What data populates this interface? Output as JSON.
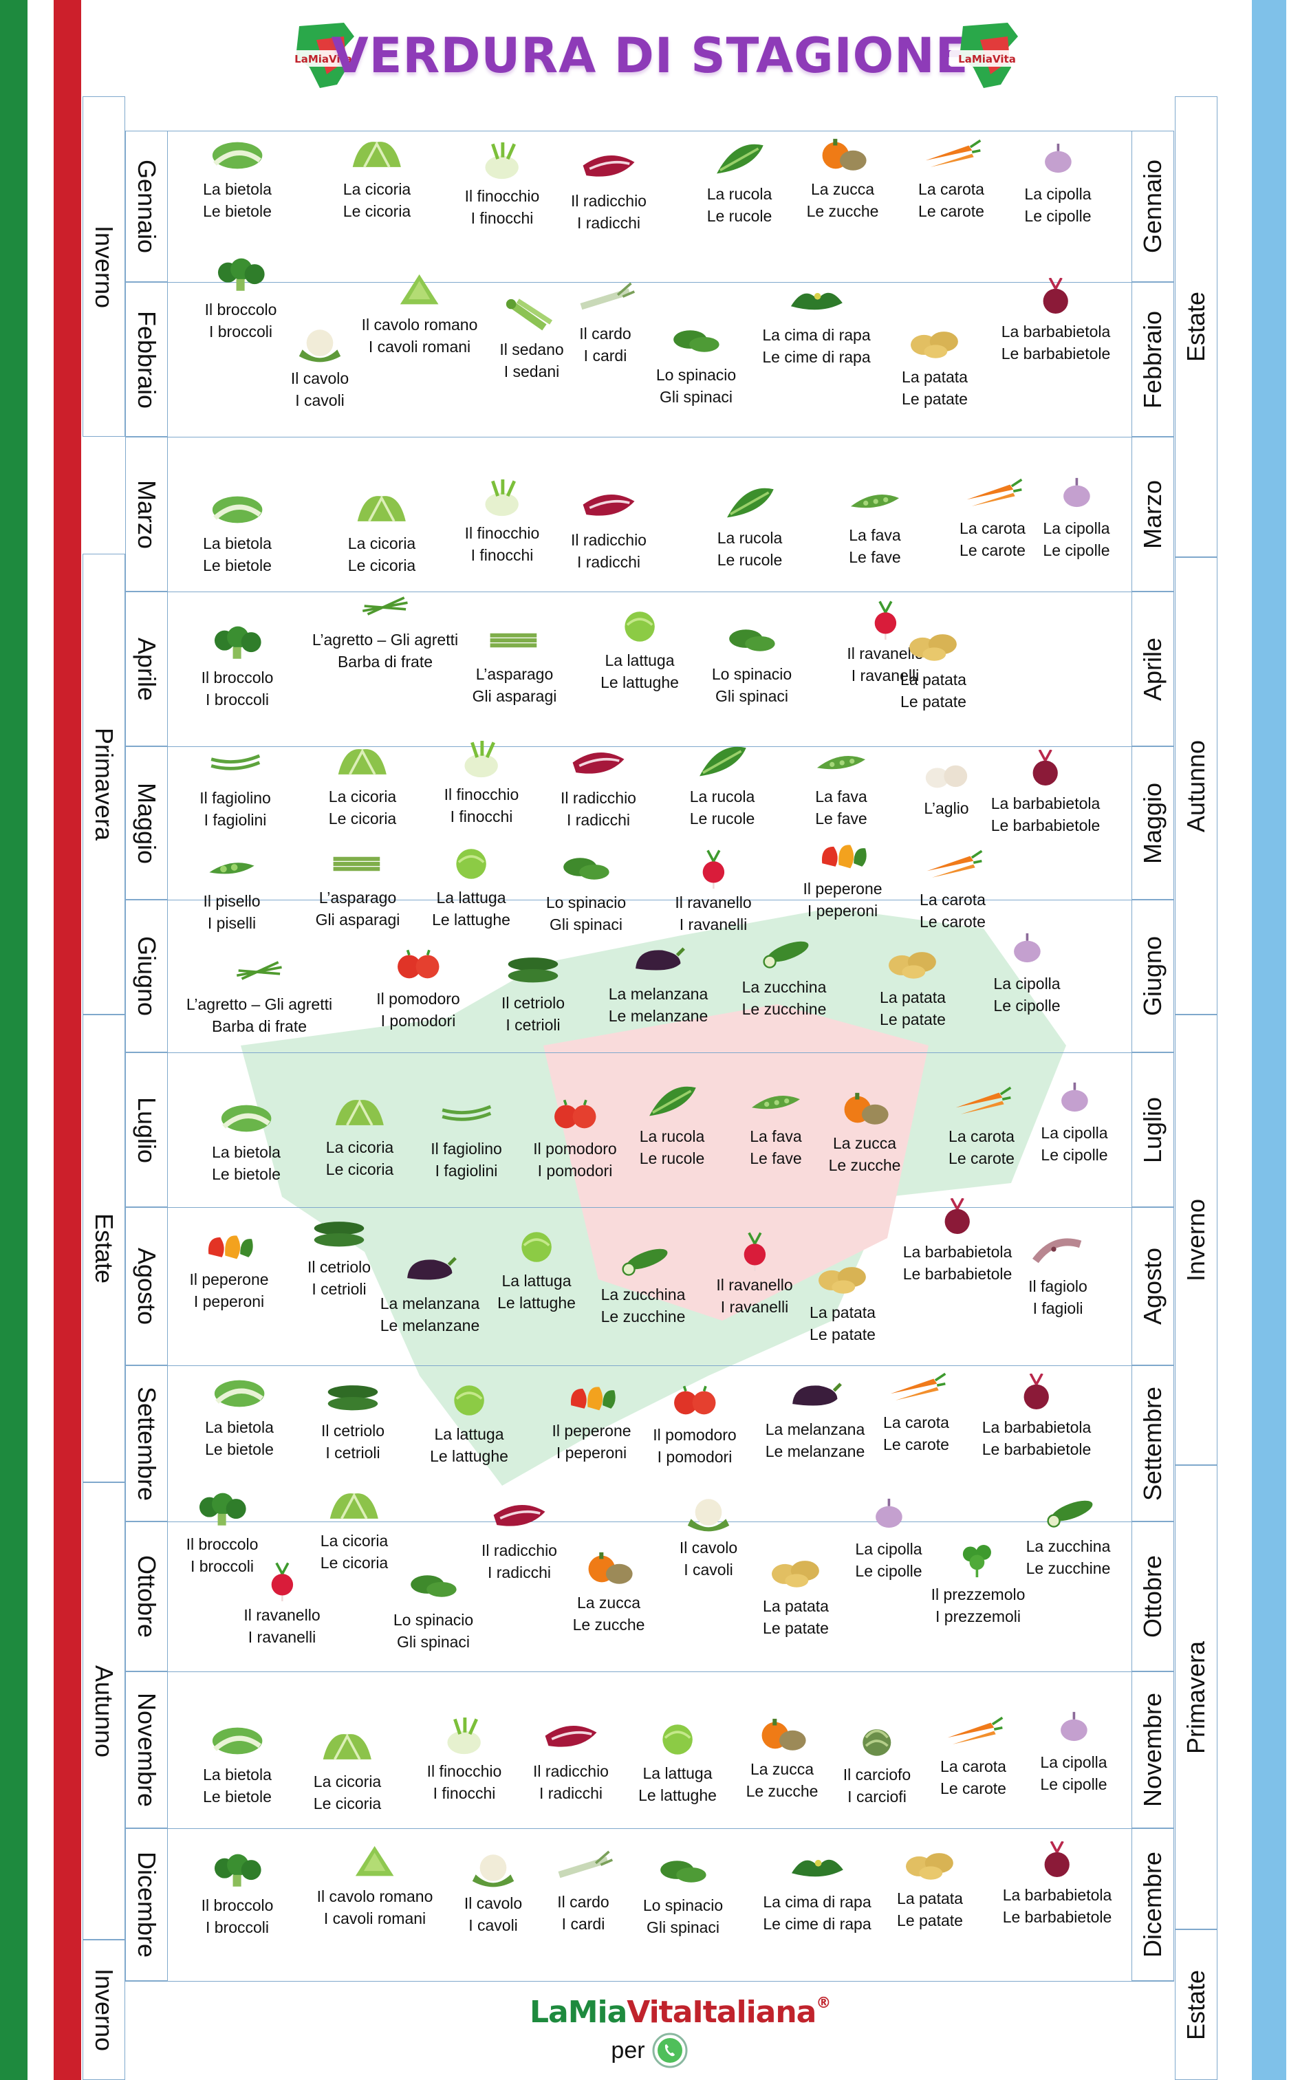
{
  "title": "VERDURA DI STAGIONE",
  "brand": {
    "part1": "La",
    "part2": "Mia",
    "part3": "Vita",
    "part4": "Italiana",
    "mark": "®",
    "per": "per",
    "whatsapp_icon": "whatsapp-icon"
  },
  "colors": {
    "green": "#1e8a3e",
    "red": "#cc1f2b",
    "blue": "#7fc1e9",
    "purple": "#8e3bb8"
  },
  "left_seasons": {
    "s1": "Inverno",
    "s2": "Primavera",
    "s3": "Estate",
    "s4": "Autunno",
    "s5": "Inverno"
  },
  "right_seasons": {
    "s1": "Estate",
    "s2": "Autunno",
    "s3": "Inverno",
    "s4": "Primavera",
    "s5": "Estate"
  },
  "months": [
    "Gennaio",
    "Febbraio",
    "Marzo",
    "Aprile",
    "Maggio",
    "Giugno",
    "Luglio",
    "Agosto",
    "Settembre",
    "Ottobre",
    "Novembre",
    "Dicembre"
  ],
  "rows": [
    {
      "items": [
        [
          "La bietola",
          "Le bietole",
          "chard"
        ],
        [
          "La cicoria",
          "Le cicoria",
          "chicory"
        ],
        [
          "Il finocchio",
          "I finocchi",
          "fennel"
        ],
        [
          "Il radicchio",
          "I radicchi",
          "radicchio"
        ],
        [
          "La rucola",
          "Le rucole",
          "rocket"
        ],
        [
          "La zucca",
          "Le zucche",
          "pumpkin"
        ],
        [
          "La carota",
          "Le carote",
          "carrot"
        ],
        [
          "La cipolla",
          "Le cipolle",
          "onion"
        ]
      ]
    },
    {
      "items": [
        [
          "Il broccolo",
          "I broccoli",
          "broccoli"
        ],
        [
          "Il cavolo",
          "I cavoli",
          "cauliflower"
        ],
        [
          "Il cavolo romano",
          "I cavoli romani",
          "romanesco"
        ],
        [
          "Il sedano",
          "I sedani",
          "celery"
        ],
        [
          "Il cardo",
          "I cardi",
          "cardoon"
        ],
        [
          "Lo spinacio",
          "Gli spinaci",
          "spinach"
        ],
        [
          "La cima di rapa",
          "Le cime di rapa",
          "turnip-greens"
        ],
        [
          "La patata",
          "Le patate",
          "potato"
        ],
        [
          "La barbabietola",
          "Le barbabietole",
          "beetroot"
        ]
      ]
    },
    {
      "items": [
        [
          "La bietola",
          "Le bietole",
          "chard"
        ],
        [
          "La cicoria",
          "Le cicoria",
          "chicory"
        ],
        [
          "Il finocchio",
          "I finocchi",
          "fennel"
        ],
        [
          "Il radicchio",
          "I radicchi",
          "radicchio"
        ],
        [
          "La rucola",
          "Le rucole",
          "rocket"
        ],
        [
          "La fava",
          "Le fave",
          "broad-bean"
        ],
        [
          "La carota",
          "Le carote",
          "carrot"
        ],
        [
          "La cipolla",
          "Le cipolle",
          "onion"
        ]
      ]
    },
    {
      "items": [
        [
          "Il broccolo",
          "I broccoli",
          "broccoli"
        ],
        [
          "L’agretto – Gli agretti",
          "Barba di frate",
          "agretti"
        ],
        [
          "L’asparago",
          "Gli asparagi",
          "asparagus"
        ],
        [
          "La lattuga",
          "Le lattughe",
          "lettuce"
        ],
        [
          "Lo spinacio",
          "Gli spinaci",
          "spinach"
        ],
        [
          "Il ravanello",
          "I ravanelli",
          "radish"
        ],
        [
          "La patata",
          "Le patate",
          "potato"
        ]
      ]
    },
    {
      "items": [
        [
          "Il fagiolino",
          "I fagiolini",
          "green-bean"
        ],
        [
          "La cicoria",
          "Le cicoria",
          "chicory"
        ],
        [
          "Il finocchio",
          "I finocchi",
          "fennel"
        ],
        [
          "Il radicchio",
          "I radicchi",
          "radicchio"
        ],
        [
          "La rucola",
          "Le rucole",
          "rocket"
        ],
        [
          "La fava",
          "Le fave",
          "broad-bean"
        ],
        [
          "L’aglio",
          "",
          "garlic"
        ],
        [
          "La barbabietola",
          "Le barbabietole",
          "beetroot"
        ],
        [
          "Il pisello",
          "I piselli",
          "pea"
        ],
        [
          "L’asparago",
          "Gli asparagi",
          "asparagus"
        ],
        [
          "La lattuga",
          "Le lattughe",
          "lettuce"
        ],
        [
          "Lo spinacio",
          "Gli spinaci",
          "spinach"
        ],
        [
          "Il ravanello",
          "I ravanelli",
          "radish"
        ],
        [
          "Il peperone",
          "I peperoni",
          "pepper"
        ],
        [
          "La carota",
          "Le carote",
          "carrot"
        ]
      ]
    },
    {
      "items": [
        [
          "L’agretto – Gli agretti",
          "Barba di frate",
          "agretti"
        ],
        [
          "Il pomodoro",
          "I pomodori",
          "tomato"
        ],
        [
          "Il cetriolo",
          "I cetrioli",
          "cucumber"
        ],
        [
          "La melanzana",
          "Le melanzane",
          "aubergine"
        ],
        [
          "La zucchina",
          "Le zucchine",
          "zucchini"
        ],
        [
          "La patata",
          "Le patate",
          "potato"
        ],
        [
          "La cipolla",
          "Le cipolle",
          "onion"
        ]
      ]
    },
    {
      "items": [
        [
          "La bietola",
          "Le bietole",
          "chard"
        ],
        [
          "La cicoria",
          "Le cicoria",
          "chicory"
        ],
        [
          "Il fagiolino",
          "I fagiolini",
          "green-bean"
        ],
        [
          "Il pomodoro",
          "I pomodori",
          "tomato"
        ],
        [
          "La rucola",
          "Le rucole",
          "rocket"
        ],
        [
          "La fava",
          "Le fave",
          "broad-bean"
        ],
        [
          "La zucca",
          "Le zucche",
          "pumpkin"
        ],
        [
          "La carota",
          "Le carote",
          "carrot"
        ],
        [
          "La cipolla",
          "Le cipolle",
          "onion"
        ]
      ]
    },
    {
      "items": [
        [
          "Il peperone",
          "I peperoni",
          "pepper"
        ],
        [
          "Il cetriolo",
          "I cetrioli",
          "cucumber"
        ],
        [
          "La melanzana",
          "Le melanzane",
          "aubergine"
        ],
        [
          "La lattuga",
          "Le lattughe",
          "lettuce"
        ],
        [
          "La zucchina",
          "Le zucchine",
          "zucchini"
        ],
        [
          "Il ravanello",
          "I ravanelli",
          "radish"
        ],
        [
          "La patata",
          "Le patate",
          "potato"
        ],
        [
          "La barbabietola",
          "Le barbabietole",
          "beetroot"
        ],
        [
          "Il fagiolo",
          "I fagioli",
          "borlotti-bean"
        ]
      ]
    },
    {
      "items": [
        [
          "La bietola",
          "Le bietole",
          "chard"
        ],
        [
          "Il cetriolo",
          "I cetrioli",
          "cucumber"
        ],
        [
          "La lattuga",
          "Le lattughe",
          "lettuce"
        ],
        [
          "Il peperone",
          "I peperoni",
          "pepper"
        ],
        [
          "Il pomodoro",
          "I pomodori",
          "tomato"
        ],
        [
          "La melanzana",
          "Le melanzane",
          "aubergine"
        ],
        [
          "La carota",
          "Le carote",
          "carrot"
        ],
        [
          "La barbabietola",
          "Le barbabietole",
          "beetroot"
        ]
      ]
    },
    {
      "items": [
        [
          "Il broccolo",
          "I broccoli",
          "broccoli"
        ],
        [
          "La cicoria",
          "Le cicoria",
          "chicory"
        ],
        [
          "Il ravanello",
          "I ravanelli",
          "radish"
        ],
        [
          "Lo spinacio",
          "Gli spinaci",
          "spinach"
        ],
        [
          "Il radicchio",
          "I radicchi",
          "radicchio"
        ],
        [
          "La zucca",
          "Le zucche",
          "pumpkin"
        ],
        [
          "Il cavolo",
          "I cavoli",
          "cauliflower"
        ],
        [
          "La patata",
          "Le patate",
          "potato"
        ],
        [
          "La cipolla",
          "Le cipolle",
          "onion"
        ],
        [
          "Il prezzemolo",
          "I prezzemoli",
          "parsley"
        ],
        [
          "La zucchina",
          "Le zucchine",
          "zucchini"
        ]
      ]
    },
    {
      "items": [
        [
          "La bietola",
          "Le bietole",
          "chard"
        ],
        [
          "La cicoria",
          "Le cicoria",
          "chicory"
        ],
        [
          "Il finocchio",
          "I finocchi",
          "fennel"
        ],
        [
          "Il radicchio",
          "I radicchi",
          "radicchio"
        ],
        [
          "La lattuga",
          "Le lattughe",
          "lettuce"
        ],
        [
          "La zucca",
          "Le zucche",
          "pumpkin"
        ],
        [
          "Il carciofo",
          "I carciofi",
          "artichoke"
        ],
        [
          "La carota",
          "Le carote",
          "carrot"
        ],
        [
          "La cipolla",
          "Le cipolle",
          "onion"
        ]
      ]
    },
    {
      "items": [
        [
          "Il broccolo",
          "I broccoli",
          "broccoli"
        ],
        [
          "Il cavolo romano",
          "I cavoli romani",
          "romanesco"
        ],
        [
          "Il cavolo",
          "I cavoli",
          "cauliflower"
        ],
        [
          "Il cardo",
          "I cardi",
          "cardoon"
        ],
        [
          "Lo spinacio",
          "Gli spinaci",
          "spinach"
        ],
        [
          "La cima di rapa",
          "Le cime di rapa",
          "turnip-greens"
        ],
        [
          "La patata",
          "Le patate",
          "potato"
        ],
        [
          "La barbabietola",
          "Le barbabietole",
          "beetroot"
        ]
      ]
    }
  ]
}
